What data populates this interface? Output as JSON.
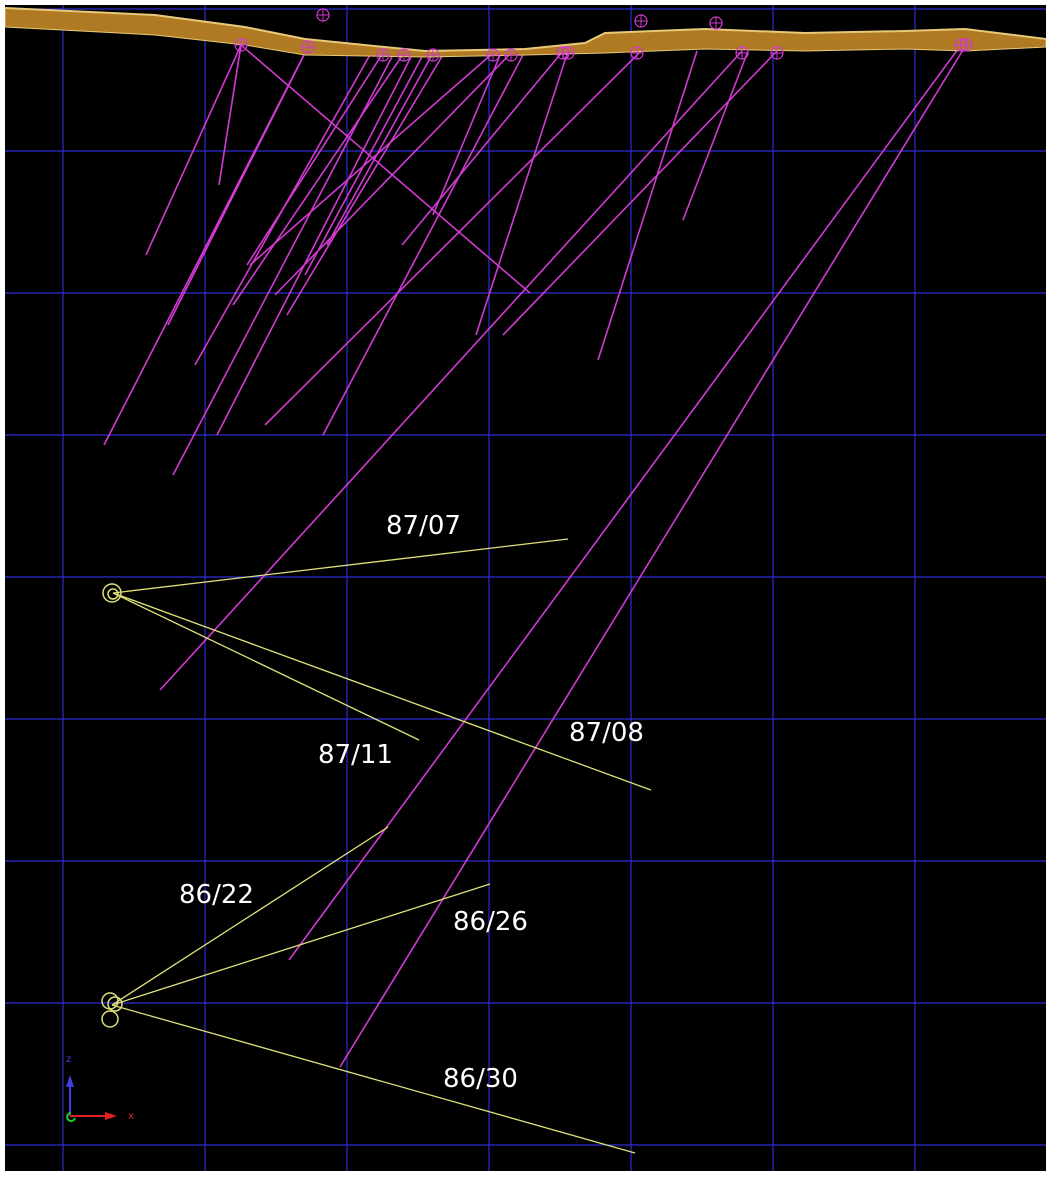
{
  "colors": {
    "background": "#000000",
    "grid": "#2d2dd2",
    "surface_fill": "#b07a22",
    "surface_edge": "#e8c97a",
    "surface_drillholes": "#d23ad2",
    "underground_drillholes": "#e0e07a",
    "labels": "#ffffff",
    "axis_x": "#e02020",
    "axis_z": "#4040e0",
    "axis_y": "#20d020"
  },
  "underground_drillholes": [
    {
      "label": "87/07"
    },
    {
      "label": "87/11"
    },
    {
      "label": "87/08"
    },
    {
      "label": "86/22"
    },
    {
      "label": "86/26"
    },
    {
      "label": "86/30"
    }
  ],
  "axis_triad": {
    "x_label": "x",
    "z_label": "z"
  }
}
